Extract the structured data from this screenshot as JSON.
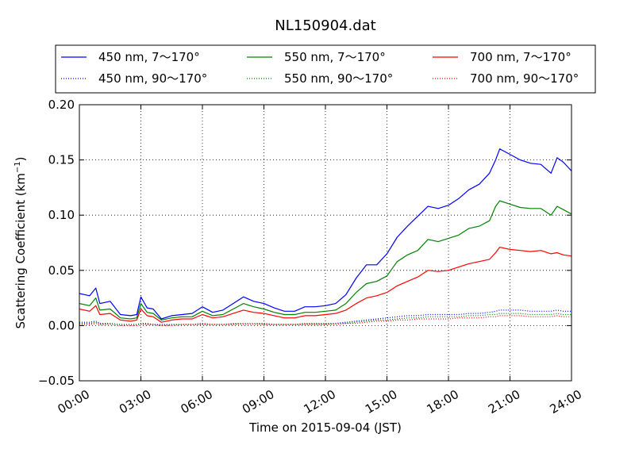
{
  "chart_data": {
    "type": "line",
    "title": "NL150904.dat",
    "xlabel": "Time on 2015-09-04 (JST)",
    "ylabel": "Scattering Coefficient (km",
    "ylabel_sup": "−1",
    "ylabel_close": ")",
    "xlim": [
      0,
      24
    ],
    "ylim": [
      -0.05,
      0.2
    ],
    "x_ticks": [
      {
        "value": 0,
        "label": "00:00"
      },
      {
        "value": 3,
        "label": "03:00"
      },
      {
        "value": 6,
        "label": "06:00"
      },
      {
        "value": 9,
        "label": "09:00"
      },
      {
        "value": 12,
        "label": "12:00"
      },
      {
        "value": 15,
        "label": "15:00"
      },
      {
        "value": 18,
        "label": "18:00"
      },
      {
        "value": 21,
        "label": "21:00"
      },
      {
        "value": 24,
        "label": "24:00"
      }
    ],
    "y_ticks": [
      {
        "value": -0.05,
        "label": "−0.05"
      },
      {
        "value": 0.0,
        "label": "0.00"
      },
      {
        "value": 0.05,
        "label": "0.05"
      },
      {
        "value": 0.1,
        "label": "0.10"
      },
      {
        "value": 0.15,
        "label": "0.15"
      },
      {
        "value": 0.2,
        "label": "0.20"
      }
    ],
    "grid": true,
    "grid_style": "dotted",
    "legend_placement": "top, above plot, 3 columns",
    "x_hours": [
      0,
      0.5,
      0.8,
      1,
      1.5,
      2,
      2.5,
      2.8,
      3,
      3.3,
      3.6,
      4,
      4.5,
      5,
      5.5,
      6,
      6.5,
      7,
      7.5,
      8,
      8.5,
      9,
      9.5,
      10,
      10.5,
      11,
      11.5,
      12,
      12.5,
      13,
      13.5,
      14,
      14.5,
      15,
      15.5,
      16,
      16.5,
      17,
      17.5,
      18,
      18.5,
      19,
      19.5,
      20,
      20.3,
      20.5,
      21,
      21.5,
      22,
      22.5,
      23,
      23.3,
      23.6,
      24
    ],
    "series": [
      {
        "name": "450 nm, 7～170°",
        "color": "#0000ff",
        "style": "solid",
        "values": [
          0.029,
          0.027,
          0.034,
          0.02,
          0.022,
          0.01,
          0.009,
          0.01,
          0.026,
          0.016,
          0.015,
          0.006,
          0.009,
          0.01,
          0.011,
          0.017,
          0.012,
          0.014,
          0.02,
          0.026,
          0.022,
          0.02,
          0.016,
          0.013,
          0.013,
          0.017,
          0.017,
          0.018,
          0.02,
          0.028,
          0.043,
          0.055,
          0.055,
          0.065,
          0.08,
          0.09,
          0.099,
          0.108,
          0.106,
          0.109,
          0.115,
          0.123,
          0.128,
          0.138,
          0.15,
          0.16,
          0.155,
          0.15,
          0.147,
          0.146,
          0.138,
          0.152,
          0.148,
          0.14
        ]
      },
      {
        "name": "450 nm, 90～170°",
        "color": "#0000ff",
        "style": "dotted",
        "values": [
          0.003,
          0.003,
          0.004,
          0.002,
          0.002,
          0.001,
          0.001,
          0.001,
          0.002,
          0.002,
          0.001,
          0.001,
          0.001,
          0.001,
          0.001,
          0.002,
          0.001,
          0.001,
          0.002,
          0.002,
          0.002,
          0.002,
          0.001,
          0.001,
          0.001,
          0.002,
          0.002,
          0.002,
          0.002,
          0.003,
          0.004,
          0.005,
          0.006,
          0.007,
          0.008,
          0.009,
          0.009,
          0.01,
          0.01,
          0.01,
          0.01,
          0.011,
          0.011,
          0.012,
          0.013,
          0.014,
          0.014,
          0.014,
          0.013,
          0.013,
          0.013,
          0.014,
          0.013,
          0.013
        ]
      },
      {
        "name": "550 nm, 7～170°",
        "color": "#008000",
        "style": "solid",
        "values": [
          0.02,
          0.018,
          0.025,
          0.014,
          0.015,
          0.007,
          0.006,
          0.007,
          0.02,
          0.012,
          0.011,
          0.005,
          0.007,
          0.008,
          0.008,
          0.013,
          0.009,
          0.01,
          0.015,
          0.02,
          0.017,
          0.015,
          0.012,
          0.01,
          0.01,
          0.012,
          0.012,
          0.013,
          0.014,
          0.02,
          0.03,
          0.038,
          0.04,
          0.045,
          0.058,
          0.064,
          0.068,
          0.078,
          0.076,
          0.079,
          0.082,
          0.088,
          0.09,
          0.095,
          0.108,
          0.113,
          0.11,
          0.107,
          0.106,
          0.106,
          0.1,
          0.108,
          0.105,
          0.101
        ]
      },
      {
        "name": "550 nm, 90～170°",
        "color": "#008000",
        "style": "dotted",
        "values": [
          0.002,
          0.002,
          0.003,
          0.001,
          0.002,
          0.001,
          0.001,
          0.001,
          0.002,
          0.001,
          0.001,
          0.0,
          0.001,
          0.001,
          0.001,
          0.001,
          0.001,
          0.001,
          0.001,
          0.002,
          0.002,
          0.001,
          0.001,
          0.001,
          0.001,
          0.001,
          0.001,
          0.001,
          0.002,
          0.002,
          0.003,
          0.004,
          0.005,
          0.005,
          0.006,
          0.007,
          0.007,
          0.008,
          0.008,
          0.008,
          0.008,
          0.009,
          0.009,
          0.01,
          0.01,
          0.011,
          0.011,
          0.011,
          0.01,
          0.01,
          0.01,
          0.011,
          0.01,
          0.01
        ]
      },
      {
        "name": "700 nm, 7～170°",
        "color": "#ff0000",
        "style": "solid",
        "values": [
          0.015,
          0.013,
          0.018,
          0.01,
          0.011,
          0.005,
          0.004,
          0.005,
          0.015,
          0.009,
          0.008,
          0.003,
          0.005,
          0.006,
          0.006,
          0.01,
          0.007,
          0.008,
          0.011,
          0.014,
          0.012,
          0.011,
          0.009,
          0.007,
          0.007,
          0.009,
          0.009,
          0.01,
          0.011,
          0.014,
          0.02,
          0.025,
          0.027,
          0.03,
          0.036,
          0.04,
          0.044,
          0.05,
          0.049,
          0.05,
          0.053,
          0.056,
          0.058,
          0.06,
          0.066,
          0.071,
          0.069,
          0.068,
          0.067,
          0.068,
          0.065,
          0.066,
          0.064,
          0.063
        ]
      },
      {
        "name": "700 nm, 90～170°",
        "color": "#ff0000",
        "style": "dotted",
        "values": [
          0.001,
          0.001,
          0.002,
          0.001,
          0.001,
          0.0,
          0.0,
          0.0,
          0.001,
          0.001,
          0.001,
          0.0,
          0.0,
          0.001,
          0.001,
          0.001,
          0.001,
          0.001,
          0.001,
          0.001,
          0.001,
          0.001,
          0.001,
          0.001,
          0.001,
          0.001,
          0.001,
          0.001,
          0.001,
          0.002,
          0.002,
          0.003,
          0.004,
          0.004,
          0.005,
          0.005,
          0.006,
          0.006,
          0.006,
          0.006,
          0.007,
          0.007,
          0.007,
          0.008,
          0.008,
          0.009,
          0.009,
          0.009,
          0.008,
          0.008,
          0.008,
          0.009,
          0.008,
          0.008
        ]
      }
    ]
  }
}
